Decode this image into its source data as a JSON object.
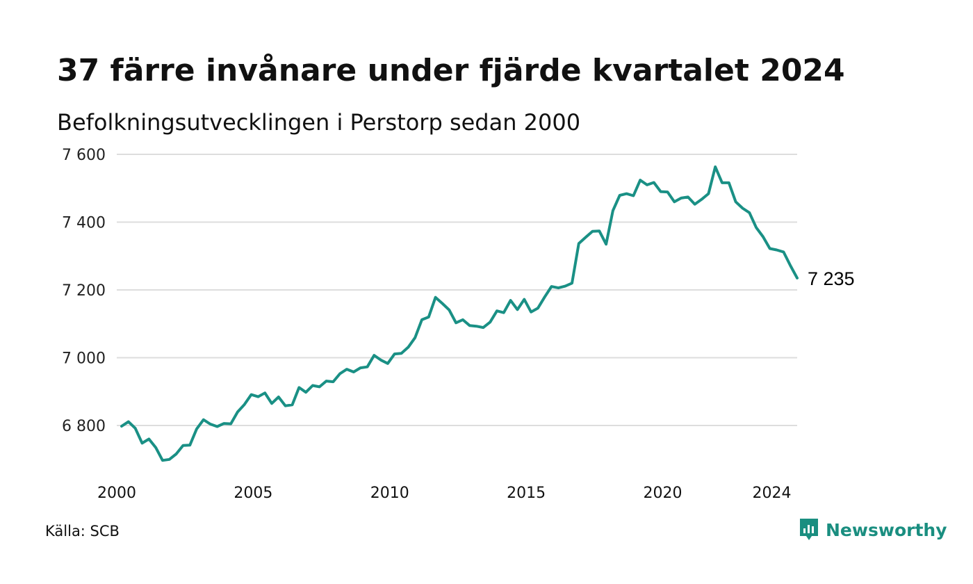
{
  "title": "37 färre invånare under fjärde kvartalet 2024",
  "subtitle": "Befolkningsutvecklingen i Perstorp sedan 2000",
  "source": "Källa: SCB",
  "brand": {
    "name": "Newsworthy",
    "icon": "newsworthy-chat-bar-icon",
    "color": "#1a8e80"
  },
  "colors": {
    "line": "#1a9085",
    "grid": "#dddddd"
  },
  "chart_data": {
    "type": "line",
    "title": "37 färre invånare under fjärde kvartalet 2024",
    "subtitle": "Befolkningsutvecklingen i Perstorp sedan 2000",
    "xlabel": "",
    "ylabel": "",
    "xlim": [
      2000,
      2025
    ],
    "ylim": [
      6680,
      7600
    ],
    "y_ticks": [
      6800,
      7000,
      7200,
      7400,
      7600
    ],
    "y_tick_labels": [
      "6 800",
      "7 000",
      "7 200",
      "7 400",
      "7 600"
    ],
    "x_ticks": [
      2000,
      2005,
      2010,
      2015,
      2020,
      2024
    ],
    "x_tick_labels": [
      "2000",
      "2005",
      "2010",
      "2015",
      "2020",
      "2024"
    ],
    "grid": "horizontal",
    "legend": "none",
    "end_label": "7 235",
    "series": [
      {
        "values": [
          6798,
          6811,
          6792,
          6748,
          6760,
          6735,
          6697,
          6700,
          6716,
          6741,
          6742,
          6790,
          6817,
          6804,
          6797,
          6806,
          6805,
          6840,
          6862,
          6891,
          6885,
          6896,
          6865,
          6884,
          6858,
          6861,
          6912,
          6898,
          6918,
          6914,
          6931,
          6929,
          6953,
          6966,
          6958,
          6970,
          6973,
          7007,
          6993,
          6983,
          7011,
          7013,
          7031,
          7059,
          7112,
          7120,
          7178,
          7160,
          7141,
          7103,
          7112,
          7095,
          7093,
          7089,
          7105,
          7138,
          7133,
          7169,
          7142,
          7172,
          7135,
          7146,
          7179,
          7210,
          7206,
          7211,
          7220,
          7337,
          7355,
          7373,
          7374,
          7335,
          7434,
          7479,
          7484,
          7478,
          7524,
          7510,
          7517,
          7490,
          7489,
          7460,
          7471,
          7474,
          7453,
          7467,
          7484,
          7563,
          7516,
          7516,
          7460,
          7441,
          7428,
          7384,
          7357,
          7322,
          7318,
          7312,
          7272,
          7235
        ]
      }
    ]
  }
}
